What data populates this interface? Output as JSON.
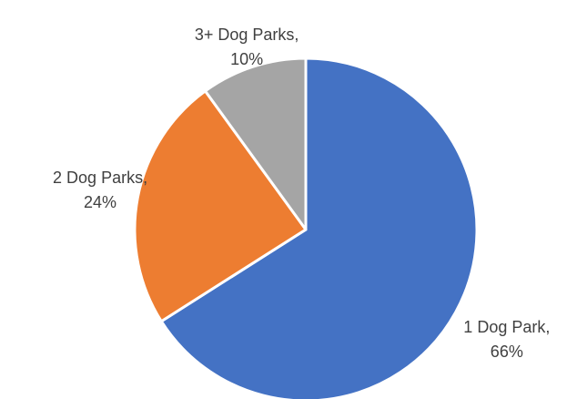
{
  "chart_data": {
    "type": "pie",
    "title": "",
    "categories": [
      "1 Dog Park",
      "2 Dog Parks",
      "3+ Dog Parks"
    ],
    "values": [
      66,
      24,
      10
    ],
    "colors": [
      "#4472C4",
      "#ED7D31",
      "#A5A5A5"
    ],
    "start_angle_deg": 0,
    "direction": "clockwise",
    "legend": "none",
    "labels": [
      {
        "name": "1 Dog Park,",
        "value": "66%"
      },
      {
        "name": "2 Dog Parks,",
        "value": "24%"
      },
      {
        "name": "3+ Dog Parks,",
        "value": "10%"
      }
    ]
  }
}
